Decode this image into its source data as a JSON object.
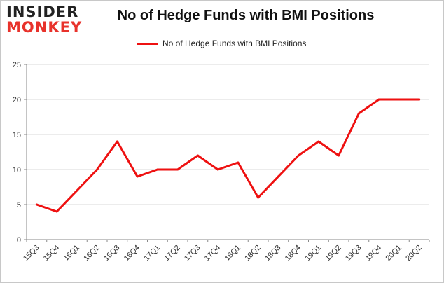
{
  "logo": {
    "line1": "INSIDER",
    "line2": "MONKEY"
  },
  "chart_data": {
    "type": "line",
    "title": "No of Hedge Funds with BMI Positions",
    "xlabel": "",
    "ylabel": "",
    "categories": [
      "15Q3",
      "15Q4",
      "16Q1",
      "16Q2",
      "16Q3",
      "16Q4",
      "17Q1",
      "17Q2",
      "17Q3",
      "17Q4",
      "18Q1",
      "18Q2",
      "18Q3",
      "18Q4",
      "19Q1",
      "19Q2",
      "19Q3",
      "19Q4",
      "20Q1",
      "20Q2"
    ],
    "series": [
      {
        "name": "No of Hedge Funds with BMI Positions",
        "values": [
          5,
          4,
          7,
          10,
          14,
          9,
          10,
          10,
          12,
          10,
          11,
          6,
          9,
          12,
          14,
          12,
          18,
          20,
          20,
          20
        ],
        "color": "#ee1111"
      }
    ],
    "ylim": [
      0,
      25
    ],
    "yticks": [
      0,
      5,
      10,
      15,
      20,
      25
    ],
    "grid": true,
    "legend_position": "top-center"
  }
}
